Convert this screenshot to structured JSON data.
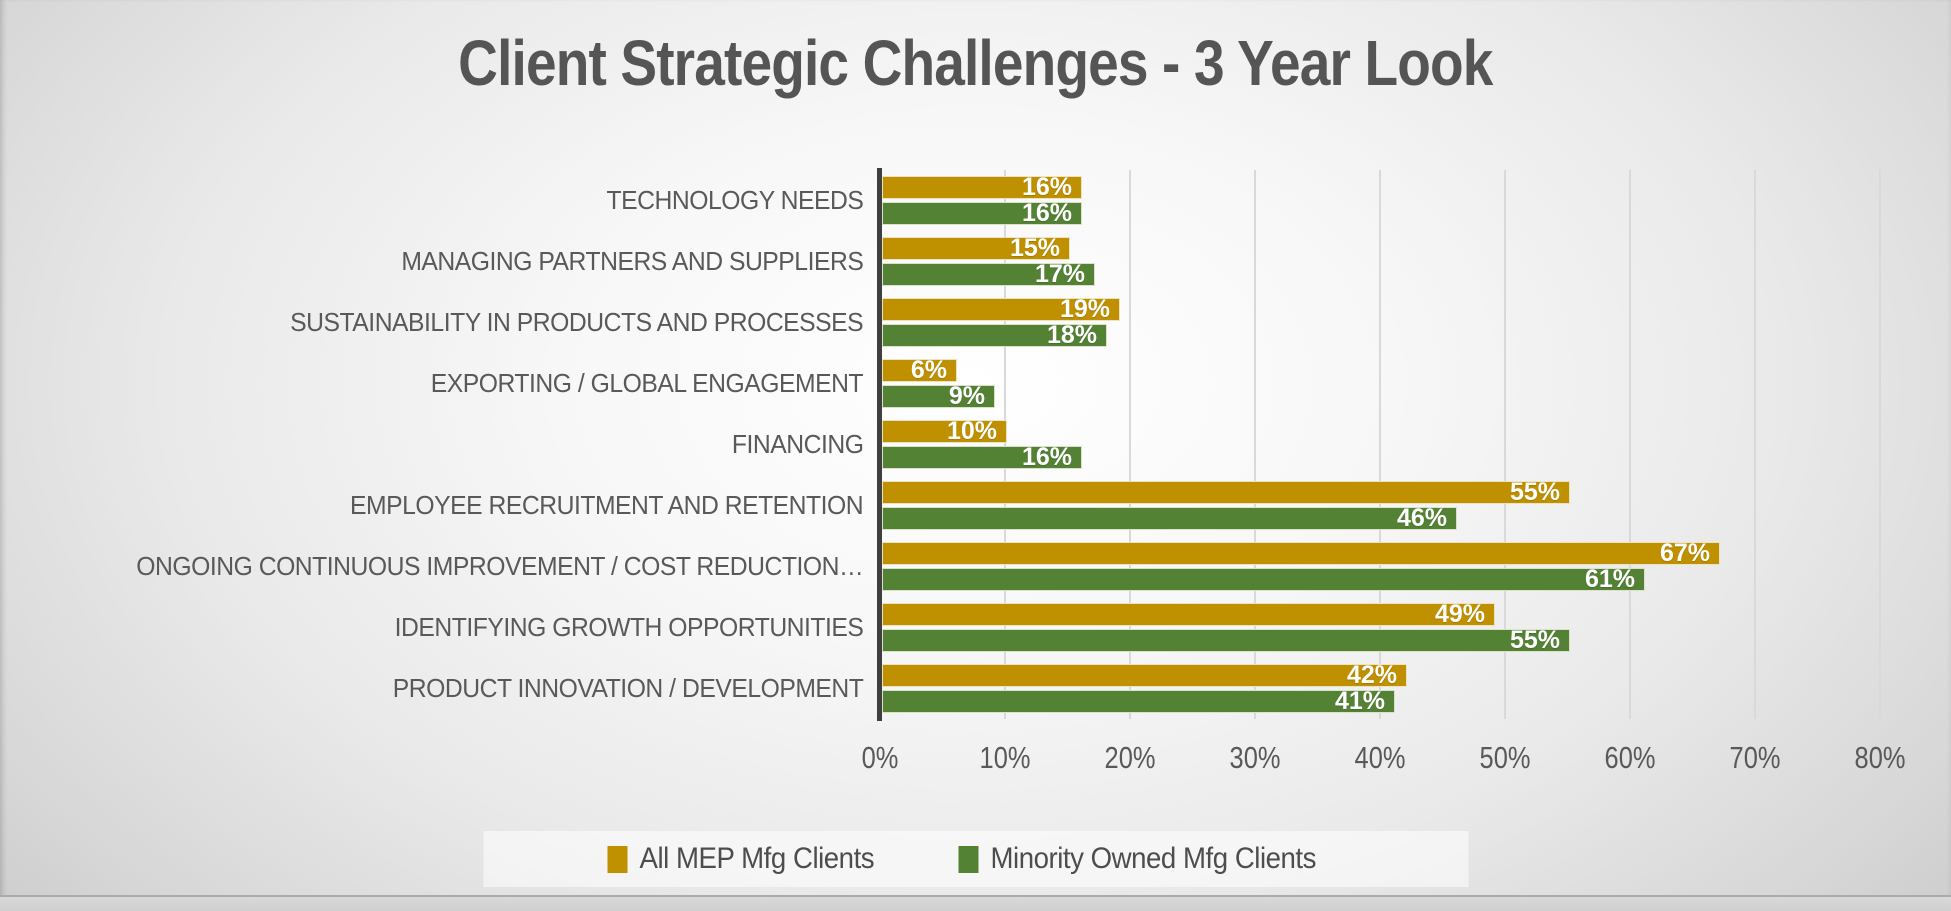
{
  "chart_data": {
    "type": "bar",
    "orientation": "horizontal",
    "title": "Client Strategic Challenges - 3 Year Look",
    "categories": [
      "TECHNOLOGY NEEDS",
      "MANAGING PARTNERS AND SUPPLIERS",
      "SUSTAINABILITY IN PRODUCTS AND PROCESSES",
      "EXPORTING / GLOBAL ENGAGEMENT",
      "FINANCING",
      "EMPLOYEE RECRUITMENT AND RETENTION",
      "ONGOING CONTINUOUS IMPROVEMENT / COST REDUCTION…",
      "IDENTIFYING GROWTH OPPORTUNITIES",
      "PRODUCT INNOVATION / DEVELOPMENT"
    ],
    "series": [
      {
        "name": "All MEP Mfg Clients",
        "color": "#BF9000",
        "values": [
          16,
          15,
          19,
          6,
          10,
          55,
          67,
          49,
          42
        ]
      },
      {
        "name": "Minority Owned Mfg Clients",
        "color": "#548235",
        "values": [
          16,
          17,
          18,
          9,
          16,
          46,
          61,
          55,
          41
        ]
      }
    ],
    "data_label_suffix": "%",
    "data_label_position": "inside-end",
    "x_ticks": [
      "0%",
      "10%",
      "20%",
      "30%",
      "40%",
      "50%",
      "60%",
      "70%",
      "80%"
    ],
    "xlim": [
      0,
      80
    ],
    "xlabel": "",
    "ylabel": "",
    "grid": true,
    "legend_position": "bottom"
  },
  "style": {
    "title_color": "#555555",
    "axis_line_color": "#3f3f3f",
    "gridline_color": "#d9d9d9",
    "axis_text_color": "#595959",
    "data_label_color": "#ffffff"
  }
}
